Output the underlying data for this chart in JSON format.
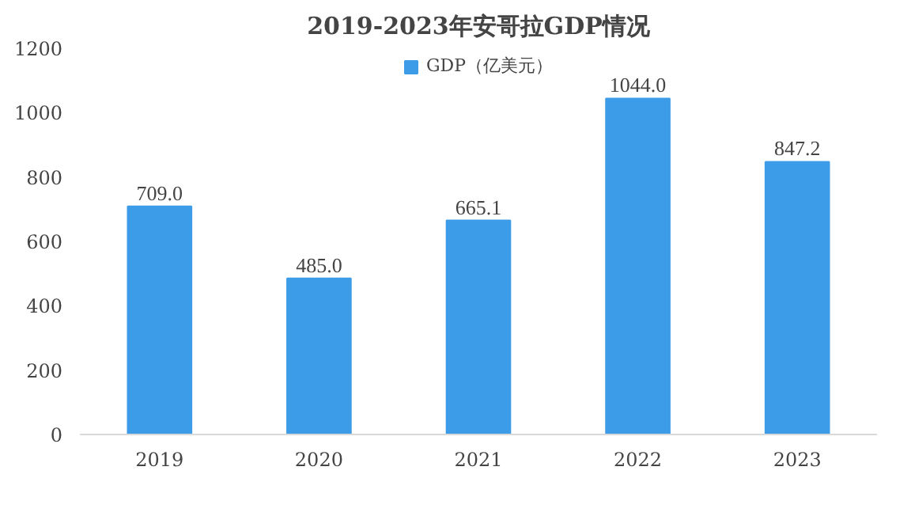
{
  "chart_data": {
    "type": "bar",
    "title": "2019-2023年安哥拉GDP情况",
    "categories": [
      "2019",
      "2020",
      "2021",
      "2022",
      "2023"
    ],
    "series": [
      {
        "name": "GDP（亿美元）",
        "color": "#3d9ce8",
        "values": [
          709.0,
          485.0,
          665.1,
          1044.0,
          847.2
        ],
        "value_labels": [
          "709.0",
          "485.0",
          "665.1",
          "1044.0",
          "847.2"
        ]
      }
    ],
    "ylim": [
      0,
      1200
    ],
    "yticks": [
      0,
      200,
      400,
      600,
      800,
      1000,
      1200
    ],
    "grid": false,
    "legend": "top"
  }
}
